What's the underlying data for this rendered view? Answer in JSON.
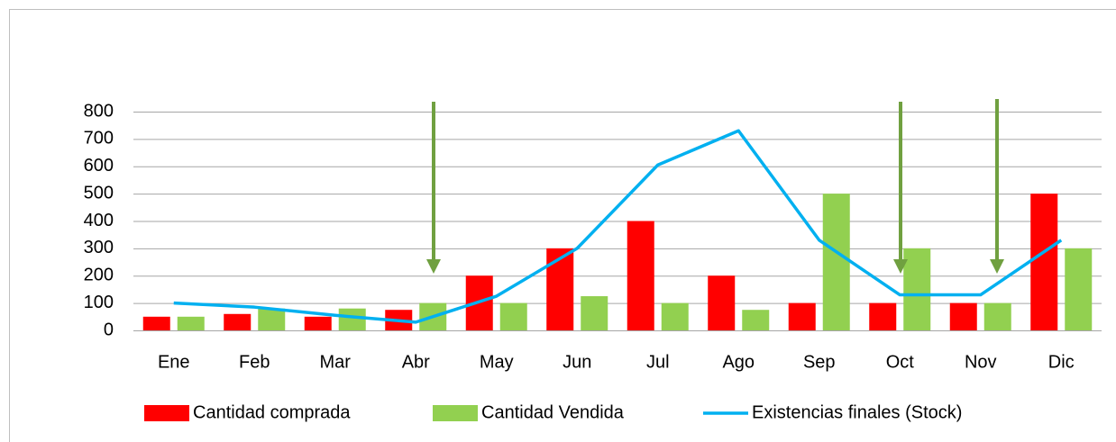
{
  "chart_data": {
    "type": "bar_line",
    "categories": [
      "Ene",
      "Feb",
      "Mar",
      "Abr",
      "May",
      "Jun",
      "Jul",
      "Ago",
      "Sep",
      "Oct",
      "Nov",
      "Dic"
    ],
    "series": [
      {
        "name": "Cantidad comprada",
        "type": "bar",
        "color": "#ff0000",
        "values": [
          50,
          60,
          50,
          75,
          200,
          300,
          400,
          200,
          100,
          100,
          100,
          500
        ]
      },
      {
        "name": "Cantidad Vendida",
        "type": "bar",
        "color": "#92d050",
        "values": [
          50,
          80,
          80,
          100,
          100,
          125,
          100,
          75,
          500,
          300,
          100,
          300
        ]
      },
      {
        "name": "Existencias finales (Stock)",
        "type": "line",
        "color": "#00b0f0",
        "values": [
          100,
          85,
          55,
          30,
          125,
          300,
          605,
          730,
          330,
          130,
          130,
          330
        ]
      }
    ],
    "ylim": [
      0,
      800
    ],
    "yticks": [
      0,
      100,
      200,
      300,
      400,
      500,
      600,
      700,
      800
    ],
    "grid": true,
    "legend": "bottom"
  }
}
